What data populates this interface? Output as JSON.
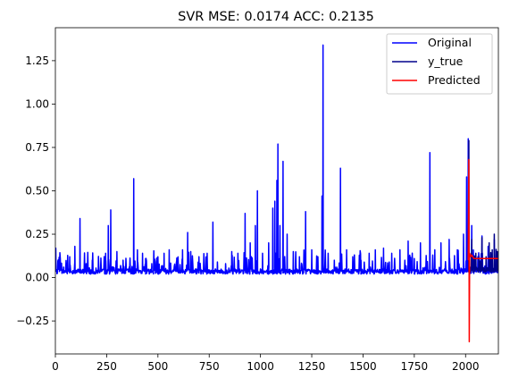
{
  "chart_data": {
    "type": "line",
    "title": "SVR MSE: 0.0174 ACC: 0.2135",
    "xlabel": "",
    "ylabel": "",
    "xlim": [
      0,
      2160
    ],
    "ylim": [
      -0.44,
      1.44
    ],
    "x_ticks": [
      0,
      250,
      500,
      750,
      1000,
      1250,
      1500,
      1750,
      2000
    ],
    "y_ticks": [
      -0.25,
      0.0,
      0.25,
      0.5,
      0.75,
      1.0,
      1.25
    ],
    "y_tick_labels": [
      "−0.25",
      "0.00",
      "0.25",
      "0.50",
      "0.75",
      "1.00",
      "1.25"
    ],
    "grid": false,
    "legend_position": "top-right",
    "colors": {
      "original": "#0000ff",
      "y_true": "#00008b",
      "predicted": "#ff0000"
    },
    "series": [
      {
        "name": "Original",
        "color": "#0000ff",
        "x_range": [
          0,
          2160
        ],
        "baseline": 0.02,
        "spikes": [
          [
            2,
            0.17
          ],
          [
            40,
            0.06
          ],
          [
            70,
            0.12
          ],
          [
            95,
            0.18
          ],
          [
            120,
            0.34
          ],
          [
            150,
            0.08
          ],
          [
            180,
            0.1
          ],
          [
            210,
            0.12
          ],
          [
            245,
            0.14
          ],
          [
            258,
            0.3
          ],
          [
            270,
            0.39
          ],
          [
            300,
            0.15
          ],
          [
            330,
            0.1
          ],
          [
            360,
            0.06
          ],
          [
            382,
            0.57
          ],
          [
            400,
            0.16
          ],
          [
            425,
            0.14
          ],
          [
            440,
            0.11
          ],
          [
            470,
            0.08
          ],
          [
            500,
            0.12
          ],
          [
            530,
            0.14
          ],
          [
            555,
            0.16
          ],
          [
            590,
            0.09
          ],
          [
            620,
            0.16
          ],
          [
            645,
            0.26
          ],
          [
            660,
            0.15
          ],
          [
            700,
            0.12
          ],
          [
            740,
            0.14
          ],
          [
            768,
            0.32
          ],
          [
            790,
            0.09
          ],
          [
            830,
            0.08
          ],
          [
            860,
            0.15
          ],
          [
            890,
            0.14
          ],
          [
            925,
            0.37
          ],
          [
            950,
            0.2
          ],
          [
            975,
            0.3
          ],
          [
            985,
            0.5
          ],
          [
            1010,
            0.14
          ],
          [
            1040,
            0.2
          ],
          [
            1060,
            0.4
          ],
          [
            1070,
            0.44
          ],
          [
            1080,
            0.56
          ],
          [
            1085,
            0.77
          ],
          [
            1095,
            0.3
          ],
          [
            1110,
            0.67
          ],
          [
            1130,
            0.25
          ],
          [
            1160,
            0.15
          ],
          [
            1190,
            0.12
          ],
          [
            1220,
            0.38
          ],
          [
            1250,
            0.16
          ],
          [
            1280,
            0.12
          ],
          [
            1300,
            0.47
          ],
          [
            1305,
            1.34
          ],
          [
            1330,
            0.14
          ],
          [
            1360,
            0.1
          ],
          [
            1390,
            0.63
          ],
          [
            1420,
            0.16
          ],
          [
            1450,
            0.12
          ],
          [
            1490,
            0.1
          ],
          [
            1530,
            0.14
          ],
          [
            1560,
            0.16
          ],
          [
            1600,
            0.17
          ],
          [
            1640,
            0.14
          ],
          [
            1680,
            0.16
          ],
          [
            1720,
            0.21
          ],
          [
            1750,
            0.11
          ],
          [
            1780,
            0.2
          ],
          [
            1826,
            0.72
          ],
          [
            1850,
            0.16
          ],
          [
            1880,
            0.2
          ],
          [
            1920,
            0.22
          ],
          [
            1960,
            0.16
          ],
          [
            1990,
            0.25
          ],
          [
            2005,
            0.58
          ],
          [
            2013,
            0.8
          ],
          [
            2030,
            0.3
          ],
          [
            2060,
            0.12
          ],
          [
            2080,
            0.24
          ],
          [
            2110,
            0.18
          ],
          [
            2140,
            0.22
          ]
        ]
      },
      {
        "name": "y_true",
        "color": "#00008b",
        "x_range": [
          2013,
          2160
        ],
        "baseline": 0.03,
        "spikes": [
          [
            2016,
            0.79
          ],
          [
            2030,
            0.22
          ],
          [
            2050,
            0.14
          ],
          [
            2065,
            0.12
          ],
          [
            2080,
            0.23
          ],
          [
            2100,
            0.12
          ],
          [
            2115,
            0.2
          ],
          [
            2130,
            0.16
          ],
          [
            2140,
            0.25
          ],
          [
            2155,
            0.15
          ]
        ]
      },
      {
        "name": "Predicted",
        "color": "#ff0000",
        "points": [
          [
            2013,
            0.1
          ],
          [
            2016,
            0.68
          ],
          [
            2018,
            -0.37
          ],
          [
            2020,
            0.14
          ],
          [
            2024,
            0.12
          ],
          [
            2030,
            0.13
          ],
          [
            2040,
            0.11
          ],
          [
            2060,
            0.11
          ],
          [
            2080,
            0.11
          ],
          [
            2100,
            0.11
          ],
          [
            2130,
            0.11
          ],
          [
            2160,
            0.11
          ]
        ]
      }
    ]
  }
}
